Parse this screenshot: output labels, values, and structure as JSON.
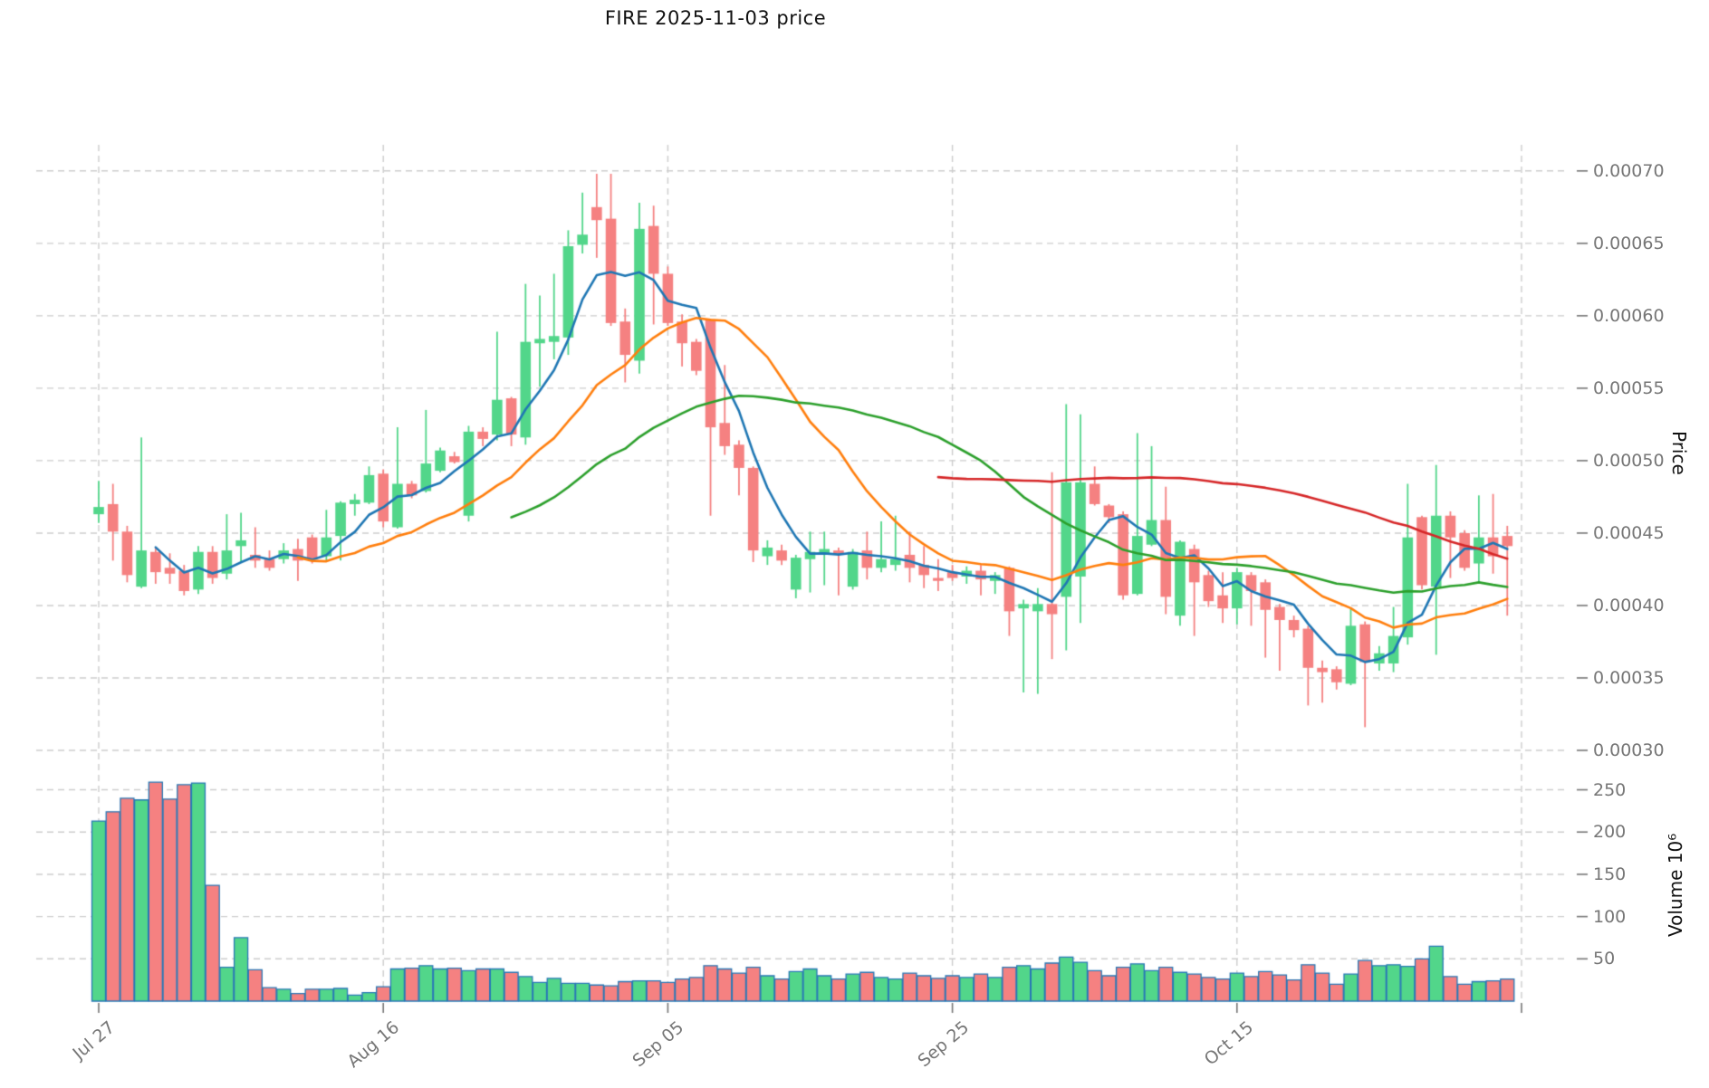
{
  "chart_data": {
    "type": "candlestick",
    "title": "FIRE  2025-11-03  price",
    "legend": null,
    "grid": "dashed",
    "x_axis": {
      "tick_labels": [
        "Jul 27",
        "Aug 16",
        "Sep 05",
        "Sep 25",
        "Oct 15"
      ],
      "tick_day_indices": [
        0,
        20,
        40,
        60,
        80
      ],
      "gridline_day_indices": [
        0,
        20,
        40,
        60,
        80,
        100
      ]
    },
    "price_axis": {
      "label": "Price",
      "range": [
        0.00029,
        0.000718
      ],
      "ticks": [
        {
          "value": 0.0007,
          "label": "0.00070"
        },
        {
          "value": 0.00065,
          "label": "0.00065"
        },
        {
          "value": 0.0006,
          "label": "0.00060"
        },
        {
          "value": 0.00055,
          "label": "0.00055"
        },
        {
          "value": 0.0005,
          "label": "0.00050"
        },
        {
          "value": 0.00045,
          "label": "0.00045"
        },
        {
          "value": 0.0004,
          "label": "0.00040"
        },
        {
          "value": 0.00035,
          "label": "0.00035"
        },
        {
          "value": 0.0003,
          "label": "0.00030"
        }
      ]
    },
    "volume_axis": {
      "label": "Volume 10⁶",
      "range": [
        0,
        272
      ],
      "ticks": [
        {
          "value": 250,
          "label": "250"
        },
        {
          "value": 200,
          "label": "200"
        },
        {
          "value": 150,
          "label": "150"
        },
        {
          "value": 100,
          "label": "100"
        },
        {
          "value": 50,
          "label": "50"
        }
      ]
    },
    "indicators": [
      {
        "name": "SMA5",
        "window": 5,
        "color": "#1f77b4"
      },
      {
        "name": "SMA15",
        "window": 15,
        "color": "#ff7f0e"
      },
      {
        "name": "SMA30",
        "window": 30,
        "color": "#2ca02c"
      },
      {
        "name": "SMA60",
        "window": 60,
        "color": "#d62728"
      }
    ],
    "colors": {
      "up": "#52d68a",
      "down": "#f58181",
      "volume_edge": "#2878b6",
      "grid": "#cdcdcd",
      "tick_text": "#767676",
      "title_text": "#111111"
    },
    "candles": {
      "columns": [
        "date",
        "open",
        "high",
        "low",
        "close",
        "volume_millions"
      ],
      "rows": [
        [
          "2025-07-27",
          0.000463,
          0.000486,
          0.000457,
          0.000468,
          213
        ],
        [
          "2025-07-28",
          0.00047,
          0.000484,
          0.000431,
          0.000451,
          224
        ],
        [
          "2025-07-29",
          0.000451,
          0.000455,
          0.000416,
          0.000421,
          240
        ],
        [
          "2025-07-30",
          0.000413,
          0.000516,
          0.000412,
          0.000438,
          238
        ],
        [
          "2025-07-31",
          0.000437,
          0.00044,
          0.000415,
          0.000423,
          259
        ],
        [
          "2025-08-01",
          0.000426,
          0.000436,
          0.000415,
          0.000422,
          239
        ],
        [
          "2025-08-02",
          0.000424,
          0.000428,
          0.000407,
          0.00041,
          256
        ],
        [
          "2025-08-03",
          0.000411,
          0.000441,
          0.000408,
          0.000437,
          258
        ],
        [
          "2025-08-04",
          0.000437,
          0.000441,
          0.000415,
          0.000419,
          137
        ],
        [
          "2025-08-05",
          0.000422,
          0.000463,
          0.000418,
          0.000438,
          40
        ],
        [
          "2025-08-06",
          0.000441,
          0.000464,
          0.00043,
          0.000445,
          75
        ],
        [
          "2025-08-07",
          0.000435,
          0.000454,
          0.000426,
          0.000431,
          37
        ],
        [
          "2025-08-08",
          0.000432,
          0.000438,
          0.000424,
          0.000426,
          16
        ],
        [
          "2025-08-09",
          0.000432,
          0.000443,
          0.000429,
          0.000438,
          14
        ],
        [
          "2025-08-10",
          0.000439,
          0.000446,
          0.000417,
          0.000431,
          9
        ],
        [
          "2025-08-11",
          0.000447,
          0.000449,
          0.000429,
          0.000432,
          14
        ],
        [
          "2025-08-12",
          0.000434,
          0.000466,
          0.000431,
          0.000447,
          14
        ],
        [
          "2025-08-13",
          0.000448,
          0.000472,
          0.000431,
          0.000471,
          15
        ],
        [
          "2025-08-14",
          0.00047,
          0.000477,
          0.000462,
          0.000473,
          7
        ],
        [
          "2025-08-15",
          0.000471,
          0.000496,
          0.00047,
          0.00049,
          10
        ],
        [
          "2025-08-16",
          0.000491,
          0.000494,
          0.000454,
          0.000458,
          17
        ],
        [
          "2025-08-17",
          0.000454,
          0.000523,
          0.000453,
          0.000484,
          38
        ],
        [
          "2025-08-18",
          0.000484,
          0.000486,
          0.000474,
          0.000476,
          39
        ],
        [
          "2025-08-19",
          0.000479,
          0.000535,
          0.000478,
          0.000498,
          42
        ],
        [
          "2025-08-20",
          0.000493,
          0.000509,
          0.000492,
          0.000507,
          38
        ],
        [
          "2025-08-21",
          0.000503,
          0.000506,
          0.000498,
          0.000499,
          39
        ],
        [
          "2025-08-22",
          0.000462,
          0.000524,
          0.000458,
          0.00052,
          36
        ],
        [
          "2025-08-23",
          0.00052,
          0.000523,
          0.00051,
          0.000515,
          38
        ],
        [
          "2025-08-24",
          0.000518,
          0.000589,
          0.000514,
          0.000542,
          38
        ],
        [
          "2025-08-25",
          0.000543,
          0.000544,
          0.00051,
          0.000518,
          34
        ],
        [
          "2025-08-26",
          0.000516,
          0.000622,
          0.000511,
          0.000582,
          29
        ],
        [
          "2025-08-27",
          0.000581,
          0.000614,
          0.000551,
          0.000584,
          22
        ],
        [
          "2025-08-28",
          0.000582,
          0.000629,
          0.00057,
          0.000586,
          27
        ],
        [
          "2025-08-29",
          0.000585,
          0.000659,
          0.000573,
          0.000648,
          21
        ],
        [
          "2025-08-30",
          0.000649,
          0.000685,
          0.000643,
          0.000656,
          21
        ],
        [
          "2025-08-31",
          0.000675,
          0.000698,
          0.00064,
          0.000666,
          19
        ],
        [
          "2025-09-01",
          0.000667,
          0.000698,
          0.000593,
          0.000595,
          18
        ],
        [
          "2025-09-02",
          0.000596,
          0.000605,
          0.000554,
          0.000573,
          23
        ],
        [
          "2025-09-03",
          0.000569,
          0.000678,
          0.00056,
          0.00066,
          24
        ],
        [
          "2025-09-04",
          0.000662,
          0.000676,
          0.000594,
          0.000629,
          24
        ],
        [
          "2025-09-05",
          0.000629,
          0.000634,
          0.000593,
          0.000595,
          22
        ],
        [
          "2025-09-06",
          0.000596,
          0.000601,
          0.000565,
          0.000581,
          26
        ],
        [
          "2025-09-07",
          0.000582,
          0.000584,
          0.000559,
          0.000562,
          28
        ],
        [
          "2025-09-08",
          0.000597,
          0.000598,
          0.000462,
          0.000523,
          42
        ],
        [
          "2025-09-09",
          0.000526,
          0.000566,
          0.000504,
          0.00051,
          38
        ],
        [
          "2025-09-10",
          0.000511,
          0.000514,
          0.000476,
          0.000495,
          33
        ],
        [
          "2025-09-11",
          0.000495,
          0.000496,
          0.00043,
          0.000438,
          40
        ],
        [
          "2025-09-12",
          0.000434,
          0.000445,
          0.000428,
          0.00044,
          30
        ],
        [
          "2025-09-13",
          0.000438,
          0.000442,
          0.000428,
          0.000431,
          26
        ],
        [
          "2025-09-14",
          0.000411,
          0.000435,
          0.000405,
          0.000433,
          35
        ],
        [
          "2025-09-15",
          0.000432,
          0.000451,
          0.000409,
          0.000437,
          38
        ],
        [
          "2025-09-16",
          0.000435,
          0.000451,
          0.000414,
          0.000439,
          30
        ],
        [
          "2025-09-17",
          0.000438,
          0.00044,
          0.000407,
          0.000436,
          26
        ],
        [
          "2025-09-18",
          0.000413,
          0.000439,
          0.000411,
          0.000437,
          32
        ],
        [
          "2025-09-19",
          0.000438,
          0.000451,
          0.000418,
          0.000426,
          34
        ],
        [
          "2025-09-20",
          0.000426,
          0.000458,
          0.000423,
          0.000432,
          28
        ],
        [
          "2025-09-21",
          0.000428,
          0.000462,
          0.000424,
          0.000432,
          26
        ],
        [
          "2025-09-22",
          0.000435,
          0.000451,
          0.000416,
          0.000426,
          33
        ],
        [
          "2025-09-23",
          0.000428,
          0.000441,
          0.000412,
          0.000421,
          30
        ],
        [
          "2025-09-24",
          0.000419,
          0.000432,
          0.00041,
          0.000417,
          27
        ],
        [
          "2025-09-25",
          0.000423,
          0.000428,
          0.000417,
          0.000419,
          30
        ],
        [
          "2025-09-26",
          0.00042,
          0.000427,
          0.000415,
          0.000424,
          28
        ],
        [
          "2025-09-27",
          0.000424,
          0.000428,
          0.000407,
          0.000418,
          32
        ],
        [
          "2025-09-28",
          0.000417,
          0.000423,
          0.000408,
          0.000421,
          28
        ],
        [
          "2025-09-29",
          0.000426,
          0.000427,
          0.000379,
          0.000396,
          40
        ],
        [
          "2025-09-30",
          0.000398,
          0.000404,
          0.00034,
          0.000401,
          42
        ],
        [
          "2025-10-01",
          0.000396,
          0.000412,
          0.000339,
          0.000401,
          38
        ],
        [
          "2025-10-02",
          0.000401,
          0.000492,
          0.000363,
          0.000394,
          45
        ],
        [
          "2025-10-03",
          0.000406,
          0.000539,
          0.000369,
          0.000485,
          52
        ],
        [
          "2025-10-04",
          0.00042,
          0.000532,
          0.000388,
          0.000485,
          46
        ],
        [
          "2025-10-05",
          0.000484,
          0.000496,
          0.000469,
          0.00047,
          36
        ],
        [
          "2025-10-06",
          0.000469,
          0.00047,
          0.000457,
          0.000461,
          30
        ],
        [
          "2025-10-07",
          0.000463,
          0.000465,
          0.000404,
          0.000407,
          40
        ],
        [
          "2025-10-08",
          0.000408,
          0.000519,
          0.000407,
          0.000448,
          44
        ],
        [
          "2025-10-09",
          0.000442,
          0.00051,
          0.000441,
          0.000459,
          36
        ],
        [
          "2025-10-10",
          0.000459,
          0.000482,
          0.000394,
          0.000406,
          40
        ],
        [
          "2025-10-11",
          0.000393,
          0.000445,
          0.000386,
          0.000444,
          34
        ],
        [
          "2025-10-12",
          0.000439,
          0.000442,
          0.000379,
          0.000416,
          32
        ],
        [
          "2025-10-13",
          0.000421,
          0.000424,
          0.000399,
          0.000403,
          28
        ],
        [
          "2025-10-14",
          0.000407,
          0.000423,
          0.000388,
          0.000398,
          26
        ],
        [
          "2025-10-15",
          0.000398,
          0.000426,
          0.000387,
          0.000423,
          33
        ],
        [
          "2025-10-16",
          0.000421,
          0.000423,
          0.000386,
          0.00041,
          29
        ],
        [
          "2025-10-17",
          0.000416,
          0.000418,
          0.000364,
          0.000397,
          35
        ],
        [
          "2025-10-18",
          0.000399,
          0.000401,
          0.000355,
          0.00039,
          31
        ],
        [
          "2025-10-19",
          0.00039,
          0.000393,
          0.000378,
          0.000383,
          25
        ],
        [
          "2025-10-20",
          0.000384,
          0.000386,
          0.000331,
          0.000357,
          43
        ],
        [
          "2025-10-21",
          0.000357,
          0.000362,
          0.000333,
          0.000354,
          33
        ],
        [
          "2025-10-22",
          0.000356,
          0.000358,
          0.000342,
          0.000347,
          20
        ],
        [
          "2025-10-23",
          0.000346,
          0.000398,
          0.000345,
          0.000386,
          32
        ],
        [
          "2025-10-24",
          0.000387,
          0.000389,
          0.000316,
          0.000361,
          48
        ],
        [
          "2025-10-25",
          0.00036,
          0.000372,
          0.000355,
          0.000367,
          42
        ],
        [
          "2025-10-26",
          0.00036,
          0.000399,
          0.000354,
          0.000379,
          43
        ],
        [
          "2025-10-27",
          0.000378,
          0.000484,
          0.000373,
          0.000447,
          41
        ],
        [
          "2025-10-28",
          0.000461,
          0.000462,
          0.000411,
          0.000414,
          50
        ],
        [
          "2025-10-29",
          0.000413,
          0.000497,
          0.000366,
          0.000462,
          65
        ],
        [
          "2025-10-30",
          0.000462,
          0.000465,
          0.000419,
          0.000447,
          29
        ],
        [
          "2025-10-31",
          0.00045,
          0.000452,
          0.000424,
          0.000426,
          20
        ],
        [
          "2025-11-01",
          0.000429,
          0.000476,
          0.000416,
          0.000447,
          23
        ],
        [
          "2025-11-02",
          0.000447,
          0.000477,
          0.000422,
          0.000434,
          24
        ],
        [
          "2025-11-03",
          0.000448,
          0.000455,
          0.000393,
          0.000441,
          26
        ]
      ]
    }
  }
}
